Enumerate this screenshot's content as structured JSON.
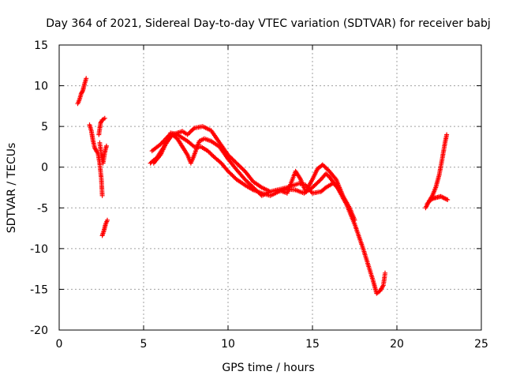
{
  "chart_data": {
    "type": "scatter",
    "title": "Day 364 of 2021, Sidereal Day-to-day VTEC variation (SDTVAR) for receiver babj",
    "xlabel": "GPS time / hours",
    "ylabel": "SDTVAR / TECUs",
    "xlim": [
      0,
      25
    ],
    "ylim": [
      -20,
      15
    ],
    "xticks": [
      0,
      5,
      10,
      15,
      20,
      25
    ],
    "yticks": [
      -20,
      -15,
      -10,
      -5,
      0,
      5,
      10,
      15
    ],
    "grid": true,
    "marker": "+",
    "series": [
      {
        "name": "SDTVAR",
        "color": "#ff0000",
        "segments": [
          [
            [
              1.1,
              7.8
            ],
            [
              1.2,
              8.3
            ],
            [
              1.3,
              9.0
            ],
            [
              1.4,
              9.4
            ],
            [
              1.5,
              10.2
            ],
            [
              1.6,
              10.9
            ]
          ],
          [
            [
              1.8,
              5.2
            ],
            [
              1.9,
              4.5
            ],
            [
              2.0,
              3.3
            ],
            [
              2.1,
              2.4
            ],
            [
              2.2,
              2.0
            ],
            [
              2.3,
              1.7
            ],
            [
              2.4,
              0.5
            ],
            [
              2.5,
              -1.5
            ],
            [
              2.55,
              -3.5
            ]
          ],
          [
            [
              2.35,
              4.0
            ],
            [
              2.45,
              5.4
            ],
            [
              2.55,
              5.8
            ],
            [
              2.7,
              6.0
            ]
          ],
          [
            [
              2.4,
              3.0
            ],
            [
              2.5,
              1.5
            ],
            [
              2.6,
              0.5
            ],
            [
              2.7,
              1.8
            ],
            [
              2.8,
              2.6
            ]
          ],
          [
            [
              2.55,
              -8.4
            ],
            [
              2.65,
              -7.8
            ],
            [
              2.75,
              -7.0
            ],
            [
              2.85,
              -6.5
            ]
          ],
          [
            [
              5.4,
              0.5
            ],
            [
              5.8,
              1.2
            ],
            [
              6.2,
              2.5
            ],
            [
              6.6,
              4.2
            ],
            [
              7.0,
              4.0
            ],
            [
              7.3,
              3.6
            ],
            [
              7.6,
              3.2
            ],
            [
              8.0,
              2.5
            ],
            [
              8.4,
              2.5
            ],
            [
              8.8,
              2.0
            ],
            [
              9.2,
              1.2
            ],
            [
              9.6,
              0.5
            ],
            [
              10.0,
              -0.5
            ],
            [
              10.5,
              -1.5
            ],
            [
              11.0,
              -2.2
            ],
            [
              11.5,
              -2.8
            ],
            [
              12.0,
              -3.2
            ],
            [
              12.5,
              -3.5
            ],
            [
              13.0,
              -3.0
            ],
            [
              13.5,
              -2.7
            ],
            [
              14.0,
              -2.8
            ],
            [
              14.5,
              -3.2
            ],
            [
              15.0,
              -2.5
            ],
            [
              15.5,
              -1.5
            ],
            [
              15.8,
              -0.8
            ],
            [
              16.0,
              -1.2
            ],
            [
              16.5,
              -2.6
            ],
            [
              17.0,
              -4.5
            ],
            [
              17.5,
              -7.0
            ],
            [
              18.0,
              -10.0
            ],
            [
              18.3,
              -12.0
            ],
            [
              18.6,
              -14.0
            ],
            [
              18.8,
              -15.5
            ],
            [
              19.0,
              -15.2
            ],
            [
              19.2,
              -14.5
            ],
            [
              19.3,
              -13.0
            ]
          ],
          [
            [
              5.5,
              2.0
            ],
            [
              6.0,
              2.8
            ],
            [
              6.5,
              3.9
            ],
            [
              7.0,
              4.2
            ],
            [
              7.3,
              4.4
            ],
            [
              7.6,
              4.0
            ],
            [
              8.0,
              4.8
            ],
            [
              8.5,
              5.0
            ],
            [
              9.0,
              4.5
            ],
            [
              9.5,
              3.0
            ],
            [
              10.0,
              1.5
            ],
            [
              10.5,
              0.5
            ],
            [
              11.0,
              -0.5
            ],
            [
              11.5,
              -1.8
            ],
            [
              12.0,
              -2.5
            ],
            [
              12.5,
              -3.0
            ],
            [
              13.0,
              -2.8
            ],
            [
              13.5,
              -3.2
            ],
            [
              14.0,
              -0.5
            ],
            [
              14.3,
              -1.5
            ],
            [
              14.6,
              -3.0
            ],
            [
              15.0,
              -1.5
            ],
            [
              15.3,
              -0.2
            ],
            [
              15.6,
              0.3
            ],
            [
              16.0,
              -0.5
            ],
            [
              16.4,
              -1.5
            ],
            [
              16.8,
              -3.5
            ],
            [
              17.2,
              -5.0
            ],
            [
              17.5,
              -6.5
            ]
          ],
          [
            [
              5.6,
              0.5
            ],
            [
              6.0,
              1.5
            ],
            [
              6.3,
              2.8
            ],
            [
              6.7,
              4.0
            ],
            [
              7.0,
              3.5
            ],
            [
              7.3,
              2.5
            ],
            [
              7.6,
              1.5
            ],
            [
              7.8,
              0.5
            ],
            [
              8.0,
              1.5
            ],
            [
              8.3,
              3.2
            ],
            [
              8.6,
              3.5
            ],
            [
              9.0,
              3.2
            ],
            [
              9.5,
              2.5
            ],
            [
              10.0,
              1.0
            ],
            [
              10.5,
              -0.3
            ],
            [
              11.0,
              -1.5
            ],
            [
              11.5,
              -2.5
            ],
            [
              12.0,
              -3.5
            ],
            [
              12.5,
              -3.0
            ],
            [
              13.5,
              -2.5
            ],
            [
              14.2,
              -2.0
            ],
            [
              14.6,
              -2.2
            ],
            [
              15.0,
              -3.2
            ],
            [
              15.5,
              -3.0
            ],
            [
              15.8,
              -2.5
            ],
            [
              16.2,
              -2.0
            ],
            [
              16.6,
              -2.5
            ]
          ],
          [
            [
              21.7,
              -5.0
            ],
            [
              21.9,
              -4.2
            ],
            [
              22.1,
              -3.5
            ],
            [
              22.3,
              -2.5
            ],
            [
              22.5,
              -1.0
            ],
            [
              22.7,
              1.2
            ],
            [
              22.85,
              3.0
            ],
            [
              22.95,
              4.0
            ]
          ],
          [
            [
              21.8,
              -4.5
            ],
            [
              22.0,
              -4.0
            ],
            [
              22.2,
              -3.8
            ],
            [
              22.4,
              -3.7
            ],
            [
              22.6,
              -3.6
            ],
            [
              22.8,
              -3.8
            ],
            [
              23.0,
              -4.0
            ]
          ]
        ]
      }
    ]
  }
}
